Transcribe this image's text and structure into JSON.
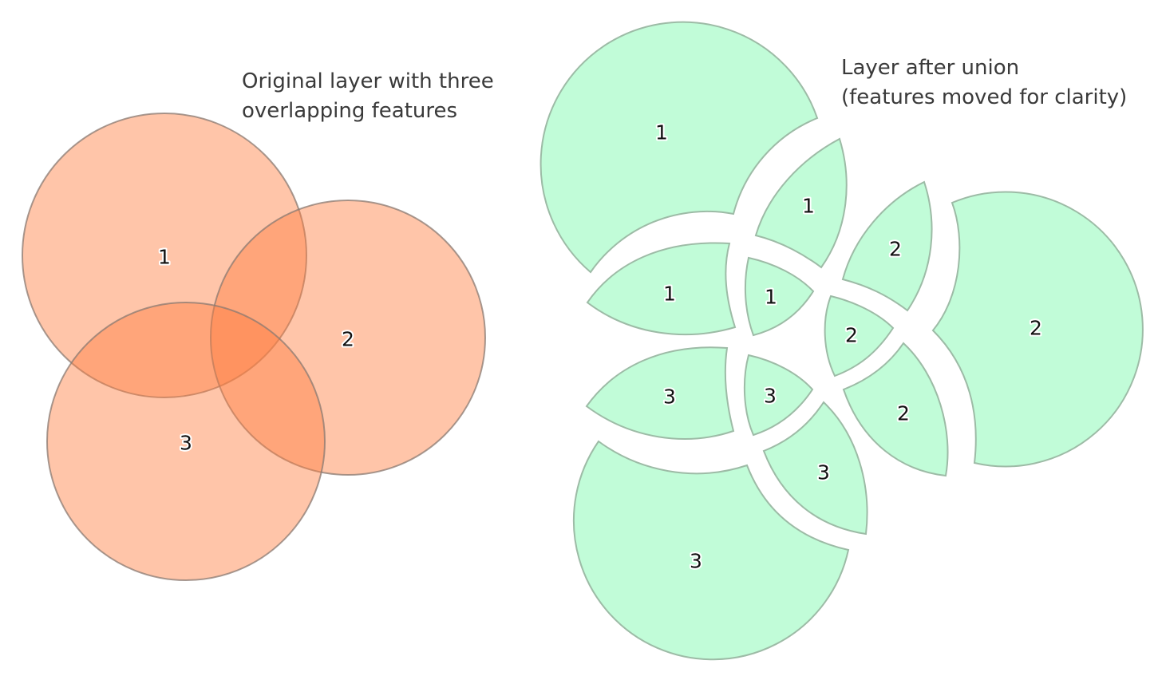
{
  "captions": {
    "original": [
      "Original layer with three",
      "overlapping features"
    ],
    "union": [
      "Layer after union",
      "(features moved for clarity)"
    ]
  },
  "original_layer": {
    "fill_color": "#ff7f41",
    "features": [
      {
        "id": "1"
      },
      {
        "id": "2"
      },
      {
        "id": "3"
      }
    ]
  },
  "union_layer": {
    "fill_color": "#c1fcd8",
    "stroke_color": "#9dbba6",
    "pieces": [
      {
        "feature": "1"
      },
      {
        "feature": "1"
      },
      {
        "feature": "1"
      },
      {
        "feature": "1"
      },
      {
        "feature": "2"
      },
      {
        "feature": "2"
      },
      {
        "feature": "2"
      },
      {
        "feature": "2"
      },
      {
        "feature": "3"
      },
      {
        "feature": "3"
      },
      {
        "feature": "3"
      },
      {
        "feature": "3"
      }
    ]
  }
}
